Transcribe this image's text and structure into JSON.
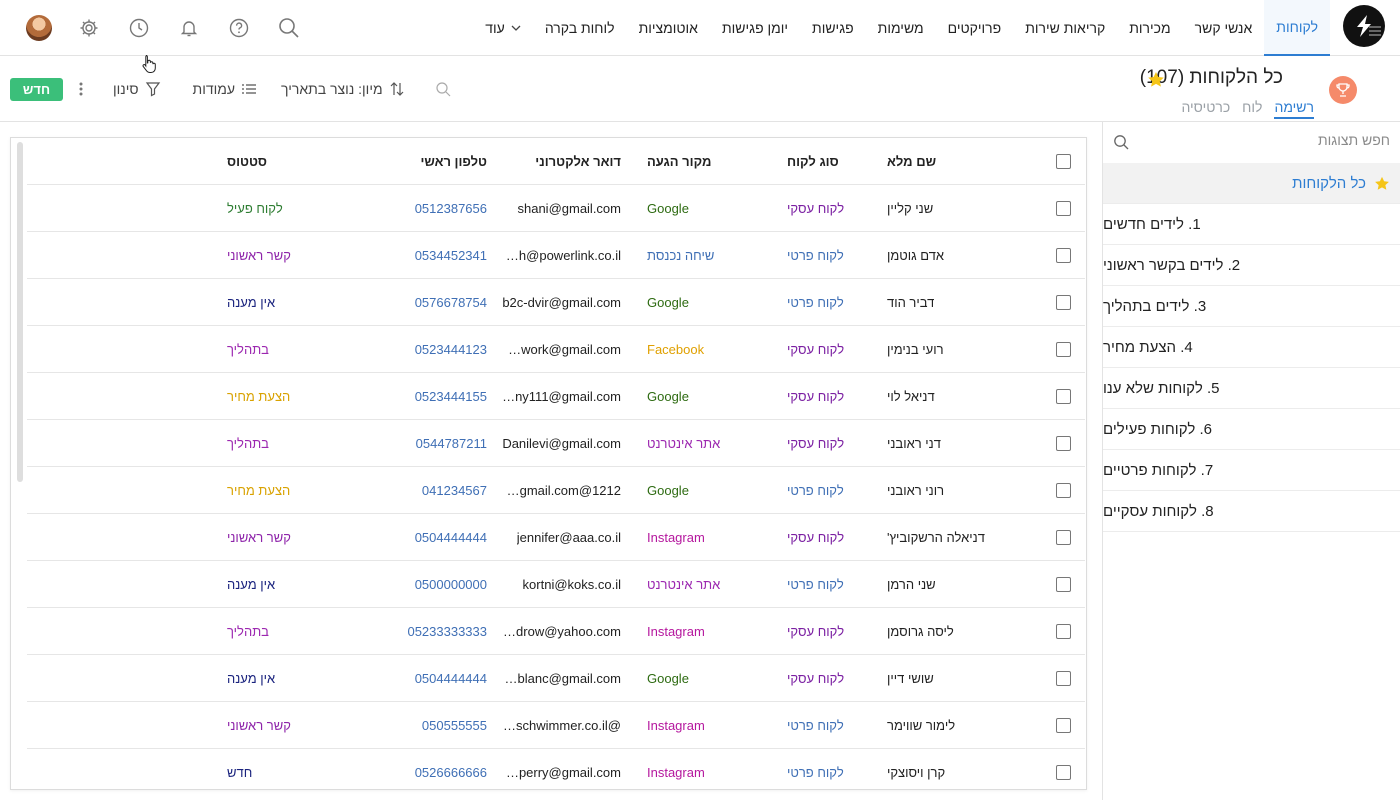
{
  "nav": {
    "items": [
      "לקוחות",
      "אנשי קשר",
      "מכירות",
      "קריאות שירות",
      "פרויקטים",
      "משימות",
      "פגישות",
      "יומן פגישות",
      "אוטומציות",
      "לוחות בקרה"
    ],
    "more_label": "עוד",
    "active_index": 0
  },
  "header": {
    "title": "כל הלקוחות (107)",
    "tabs": [
      "רשימה",
      "לוח",
      "כרטיסיה"
    ],
    "active_tab": 0
  },
  "toolbar": {
    "new_label": "חדש",
    "filter_label": "סינון",
    "columns_label": "עמודות",
    "sort_label": "מיון: נוצר בתאריך"
  },
  "sidebar": {
    "search_placeholder": "חפש תצוגות",
    "items": [
      "כל הלקוחות",
      "1. לידים חדשים",
      "2. לידים בקשר ראשוני",
      "3. לידים בתהליך",
      "4. הצעת מחיר",
      "5. לקוחות שלא ענו",
      "6. לקוחות פעילים",
      "7. לקוחות פרטיים",
      "8. לקוחות עסקיים"
    ]
  },
  "table": {
    "columns": {
      "name": "שם מלא",
      "type": "סוג לקוח",
      "source": "מקור הגעה",
      "email": "דואר אלקטרוני",
      "phone": "טלפון ראשי",
      "status": "סטטוס"
    },
    "rows": [
      {
        "name": "שני קליין",
        "type": "לקוח עסקי",
        "source": "Google",
        "email": "shani@gmail.com",
        "phone": "0512387656",
        "status": "לקוח פעיל"
      },
      {
        "name": "אדם גוטמן",
        "type": "לקוח פרטי",
        "source": "שיחה נכנסת",
        "email": "h@powerlink.co.il…",
        "phone": "0534452341",
        "status": "קשר ראשוני"
      },
      {
        "name": "דביר הוד",
        "type": "לקוח פרטי",
        "source": "Google",
        "email": "b2c-dvir@gmail.com",
        "phone": "0576678754",
        "status": "אין מענה"
      },
      {
        "name": "רועי בנימין",
        "type": "לקוח עסקי",
        "source": "Facebook",
        "email": "work@gmail.com…",
        "phone": "0523444123",
        "status": "בתהליך"
      },
      {
        "name": "דניאל לוי",
        "type": "לקוח עסקי",
        "source": "Google",
        "email": "ny111@gmail.com…",
        "phone": "0523444155",
        "status": "הצעת מחיר"
      },
      {
        "name": "דני ראובני",
        "type": "לקוח עסקי",
        "source": "אתר אינטרנט",
        "email": "Danilevi@gmail.com",
        "phone": "0544787211",
        "status": "בתהליך"
      },
      {
        "name": "רוני ראובני",
        "type": "לקוח פרטי",
        "source": "Google",
        "email": "1212@gmail.com…",
        "phone": "041234567",
        "status": "הצעת מחיר"
      },
      {
        "name": "דניאלה הרשקוביץ'",
        "type": "לקוח עסקי",
        "source": "Instagram",
        "email": "jennifer@aaa.co.il",
        "phone": "0504444444",
        "status": "קשר ראשוני"
      },
      {
        "name": "שני הרמן",
        "type": "לקוח פרטי",
        "source": "אתר אינטרנט",
        "email": "kortni@koks.co.il",
        "phone": "0500000000",
        "status": "אין מענה"
      },
      {
        "name": "ליסה גרוסמן",
        "type": "לקוח עסקי",
        "source": "Instagram",
        "email": "drow@yahoo.com…",
        "phone": "05233333333",
        "status": "בתהליך"
      },
      {
        "name": "שושי דיין",
        "type": "לקוח עסקי",
        "source": "Google",
        "email": "blanc@gmail.com…",
        "phone": "0504444444",
        "status": "אין מענה"
      },
      {
        "name": "לימור שווימר",
        "type": "לקוח פרטי",
        "source": "Instagram",
        "email": "@schwimmer.co.il…",
        "phone": "050555555",
        "status": "קשר ראשוני"
      },
      {
        "name": "קרן ויסוצקי",
        "type": "לקוח פרטי",
        "source": "Instagram",
        "email": "perry@gmail.com…",
        "phone": "0526666666",
        "status": "חדש"
      }
    ]
  },
  "colors": {
    "accent": "#2d7dd2",
    "new_button": "#3bbf7a",
    "type": {
      "לקוח עסקי": "#7b1fa2",
      "לקוח פרטי": "#3f6fb5"
    },
    "source": {
      "Google": "#2e6b12",
      "שיחה נכנסת": "#3f6fb5",
      "Facebook": "#e0a000",
      "אתר אינטרנט": "#9c27b0",
      "Instagram": "#b5179e"
    },
    "status": {
      "לקוח פעיל": "#2e7d32",
      "קשר ראשוני": "#8e24aa",
      "אין מענה": "#1a237e",
      "בתהליך": "#9c27b0",
      "הצעת מחיר": "#d9a200",
      "חדש": "#1a237e"
    }
  },
  "icons": {
    "top": [
      "search-icon",
      "help-icon",
      "bell-icon",
      "clock-icon",
      "gear-icon"
    ],
    "header": [
      "menu-lines-icon",
      "trophy-icon",
      "star-icon"
    ]
  }
}
